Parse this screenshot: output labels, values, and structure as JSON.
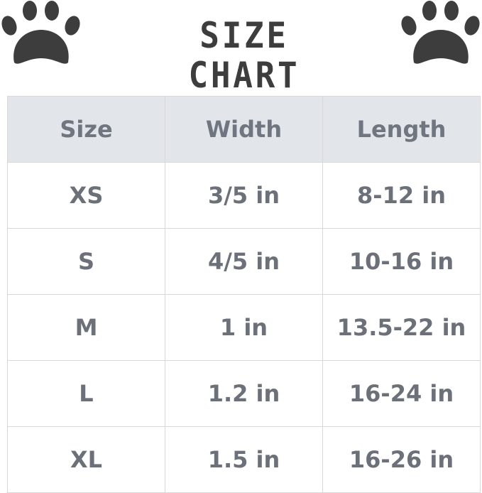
{
  "title": "SIZE CHART",
  "icons": {
    "left": "paw-print-icon",
    "right": "paw-print-icon",
    "color": "#3d3d3d"
  },
  "colors": {
    "header_bg": "#e2e5e9",
    "text": "#6b7079",
    "border": "#d8d8d8"
  },
  "chart_data": {
    "type": "table",
    "title": "SIZE CHART",
    "columns": [
      "Size",
      "Width",
      "Length"
    ],
    "rows": [
      [
        "XS",
        "3/5 in",
        "8-12 in"
      ],
      [
        "S",
        "4/5 in",
        "10-16 in"
      ],
      [
        "M",
        "1 in",
        "13.5-22 in"
      ],
      [
        "L",
        "1.2 in",
        "16-24 in"
      ],
      [
        "XL",
        "1.5 in",
        "16-26 in"
      ]
    ]
  }
}
